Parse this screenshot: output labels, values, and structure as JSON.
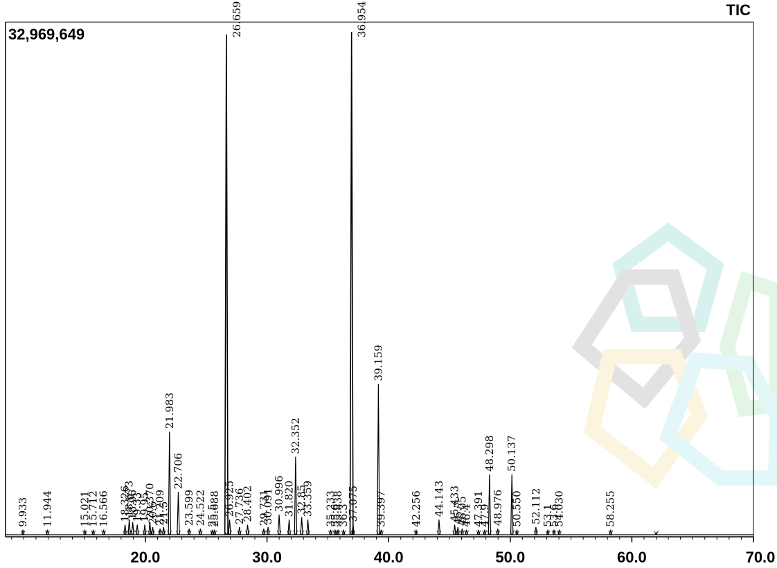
{
  "chart_data": {
    "type": "line",
    "signal_label": "TIC",
    "max_intensity_label": "32,969,649",
    "xlim": [
      8.5,
      70.0
    ],
    "ylim": [
      0,
      32969649
    ],
    "x_ticks": [
      20.0,
      30.0,
      40.0,
      50.0,
      60.0,
      70.0
    ],
    "x_tick_labels": [
      "20.0",
      "30.0",
      "40.0",
      "50.0",
      "60.0",
      "70.0"
    ],
    "peaks": [
      {
        "rt": 9.933,
        "label": "9.933",
        "height": 0.01
      },
      {
        "rt": 11.944,
        "label": "11.944",
        "height": 0.01
      },
      {
        "rt": 15.021,
        "label": "15.021",
        "height": 0.01
      },
      {
        "rt": 15.712,
        "label": "15.712",
        "height": 0.01
      },
      {
        "rt": 16.566,
        "label": "16.566",
        "height": 0.01
      },
      {
        "rt": 18.326,
        "label": "18.326",
        "height": 0.02
      },
      {
        "rt": 18.673,
        "label": "18.673",
        "height": 0.03
      },
      {
        "rt": 18.96,
        "label": "18.96",
        "height": 0.025
      },
      {
        "rt": 19.33,
        "label": "19.33",
        "height": 0.02
      },
      {
        "rt": 19.95,
        "label": "19.95",
        "height": 0.02
      },
      {
        "rt": 20.37,
        "label": "20.370",
        "height": 0.025
      },
      {
        "rt": 20.6,
        "label": "20.6",
        "height": 0.015
      },
      {
        "rt": 21.209,
        "label": "21.209",
        "height": 0.012
      },
      {
        "rt": 21.5,
        "label": "21.5",
        "height": 0.015
      },
      {
        "rt": 21.983,
        "label": "21.983",
        "height": 0.205
      },
      {
        "rt": 22.706,
        "label": "22.706",
        "height": 0.085
      },
      {
        "rt": 23.599,
        "label": "23.599",
        "height": 0.012
      },
      {
        "rt": 24.522,
        "label": "24.522",
        "height": 0.012
      },
      {
        "rt": 25.5,
        "label": "25.5",
        "height": 0.01
      },
      {
        "rt": 25.688,
        "label": "25.688",
        "height": 0.01
      },
      {
        "rt": 26.659,
        "label": "26.659",
        "height": 0.995
      },
      {
        "rt": 26.925,
        "label": "26.925",
        "height": 0.03
      },
      {
        "rt": 27.736,
        "label": "27.736",
        "height": 0.015
      },
      {
        "rt": 28.402,
        "label": "28.402",
        "height": 0.02
      },
      {
        "rt": 29.731,
        "label": "29.731",
        "height": 0.012
      },
      {
        "rt": 30.091,
        "label": "30.091",
        "height": 0.015
      },
      {
        "rt": 30.996,
        "label": "30.996",
        "height": 0.04
      },
      {
        "rt": 31.82,
        "label": "31.820",
        "height": 0.03
      },
      {
        "rt": 32.352,
        "label": "32.352",
        "height": 0.155
      },
      {
        "rt": 32.85,
        "label": "32.85",
        "height": 0.035
      },
      {
        "rt": 33.359,
        "label": "33.359",
        "height": 0.03
      },
      {
        "rt": 35.233,
        "label": "35.233",
        "height": 0.01
      },
      {
        "rt": 35.6,
        "label": "35.6",
        "height": 0.01
      },
      {
        "rt": 35.838,
        "label": "35.838",
        "height": 0.01
      },
      {
        "rt": 36.3,
        "label": "36.3",
        "height": 0.01
      },
      {
        "rt": 36.954,
        "label": "36.954",
        "height": 1.0
      },
      {
        "rt": 37.075,
        "label": "37.075",
        "height": 0.02
      },
      {
        "rt": 39.159,
        "label": "39.159",
        "height": 0.3
      },
      {
        "rt": 39.397,
        "label": "39.397",
        "height": 0.01
      },
      {
        "rt": 42.256,
        "label": "42.256",
        "height": 0.01
      },
      {
        "rt": 44.143,
        "label": "44.143",
        "height": 0.03
      },
      {
        "rt": 45.433,
        "label": "45.433",
        "height": 0.02
      },
      {
        "rt": 45.7,
        "label": "45.7",
        "height": 0.015
      },
      {
        "rt": 46.05,
        "label": "46.05",
        "height": 0.012
      },
      {
        "rt": 46.4,
        "label": "46.4",
        "height": 0.01
      },
      {
        "rt": 47.391,
        "label": "47.391",
        "height": 0.01
      },
      {
        "rt": 47.9,
        "label": "47.9",
        "height": 0.01
      },
      {
        "rt": 48.298,
        "label": "48.298",
        "height": 0.12
      },
      {
        "rt": 48.976,
        "label": "48.976",
        "height": 0.012
      },
      {
        "rt": 50.137,
        "label": "50.137",
        "height": 0.12
      },
      {
        "rt": 50.55,
        "label": "50.550",
        "height": 0.01
      },
      {
        "rt": 52.112,
        "label": "52.112",
        "height": 0.015
      },
      {
        "rt": 53.1,
        "label": "53.1",
        "height": 0.01
      },
      {
        "rt": 53.6,
        "label": "53.6",
        "height": 0.01
      },
      {
        "rt": 54.03,
        "label": "54.030",
        "height": 0.01
      },
      {
        "rt": 58.255,
        "label": "58.255",
        "height": 0.01
      },
      {
        "rt": 62.0,
        "label": "",
        "height": 0.004
      }
    ]
  }
}
